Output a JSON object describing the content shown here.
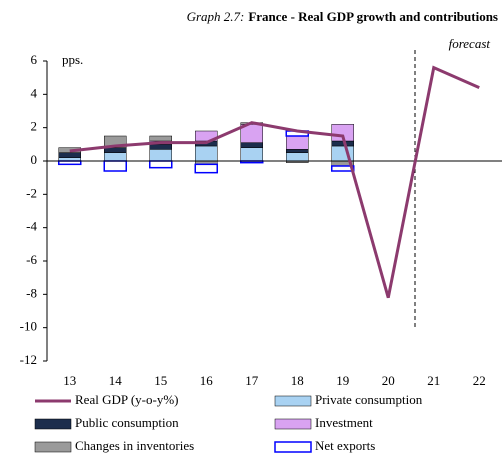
{
  "chart_data": {
    "type": "bar",
    "graph_label": "Graph 2.7:",
    "title": "France - Real GDP growth and contributions",
    "y_unit": "pps.",
    "annotation": "forecast",
    "categories": [
      "13",
      "14",
      "15",
      "16",
      "17",
      "18",
      "19",
      "20",
      "21",
      "22"
    ],
    "series": [
      {
        "name": "Private consumption",
        "color": "#a9d2f2",
        "values": [
          0.2,
          0.5,
          0.7,
          0.9,
          0.8,
          0.5,
          0.9,
          null,
          null,
          null
        ]
      },
      {
        "name": "Public consumption",
        "color": "#1c2d4c",
        "values": [
          0.3,
          0.3,
          0.3,
          0.3,
          0.3,
          0.2,
          0.3,
          null,
          null,
          null
        ]
      },
      {
        "name": "Investment",
        "color": "#d9a3f2",
        "values": [
          0.0,
          0.0,
          0.2,
          0.6,
          1.1,
          0.8,
          1.0,
          null,
          null,
          null
        ]
      },
      {
        "name": "Changes in inventories",
        "color": "#9a9a9a",
        "values": [
          0.3,
          0.7,
          0.3,
          -0.2,
          0.1,
          -0.1,
          -0.3,
          null,
          null,
          null
        ]
      },
      {
        "name": "Net exports",
        "color": "#0000ff",
        "outline": true,
        "values": [
          -0.2,
          -0.6,
          -0.4,
          -0.5,
          -0.1,
          0.3,
          -0.3,
          null,
          null,
          null
        ]
      }
    ],
    "line": {
      "name": "Real GDP (y-o-y%)",
      "color": "#8c3a6e",
      "values": [
        0.6,
        0.9,
        1.1,
        1.1,
        2.3,
        1.8,
        1.5,
        -8.2,
        5.6,
        4.4
      ]
    },
    "ylim": [
      -12,
      6
    ],
    "yticks": [
      -12,
      -10,
      -8,
      -6,
      -4,
      -2,
      0,
      2,
      4,
      6
    ]
  }
}
